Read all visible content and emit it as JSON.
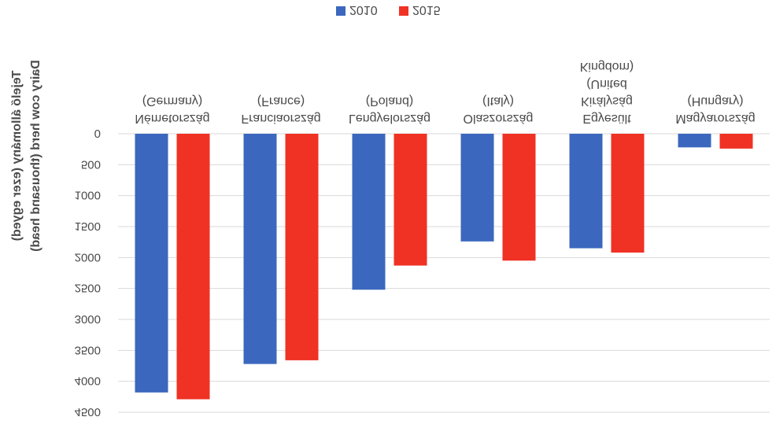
{
  "chart_data": {
    "type": "bar",
    "orientation": "vertical-flipped",
    "title": "",
    "ylabel_line1": "Tejelő állomány (ezer egyed)",
    "ylabel_line2": "Dairy cow herd (thousand head)",
    "xlabel": "",
    "ylim": [
      0,
      4500
    ],
    "yticks": [
      "0",
      "500",
      "1000",
      "1500",
      "2000",
      "2500",
      "3000",
      "3500",
      "4000",
      "4500"
    ],
    "ytick_values": [
      0,
      500,
      1000,
      1500,
      2000,
      2500,
      3000,
      3500,
      4000,
      4500
    ],
    "categories": [
      [
        "Németország",
        "(Germany)"
      ],
      [
        "Franciaország",
        "(France)"
      ],
      [
        "Lengyelország",
        "(Poland)"
      ],
      [
        "Olaszország",
        "(Italy)"
      ],
      [
        "Egyesült",
        "Királyság",
        "(United",
        "Kingdom)"
      ],
      [
        "Magyarország",
        "(Hungary)"
      ]
    ],
    "series": [
      {
        "name": "2010",
        "color": "#3b67be",
        "values": [
          4180,
          3720,
          2520,
          1740,
          1850,
          220
        ]
      },
      {
        "name": "2015",
        "color": "#ef3224",
        "values": [
          4290,
          3660,
          2130,
          2050,
          1920,
          240
        ]
      }
    ],
    "legend_position": "top",
    "grid": true
  }
}
